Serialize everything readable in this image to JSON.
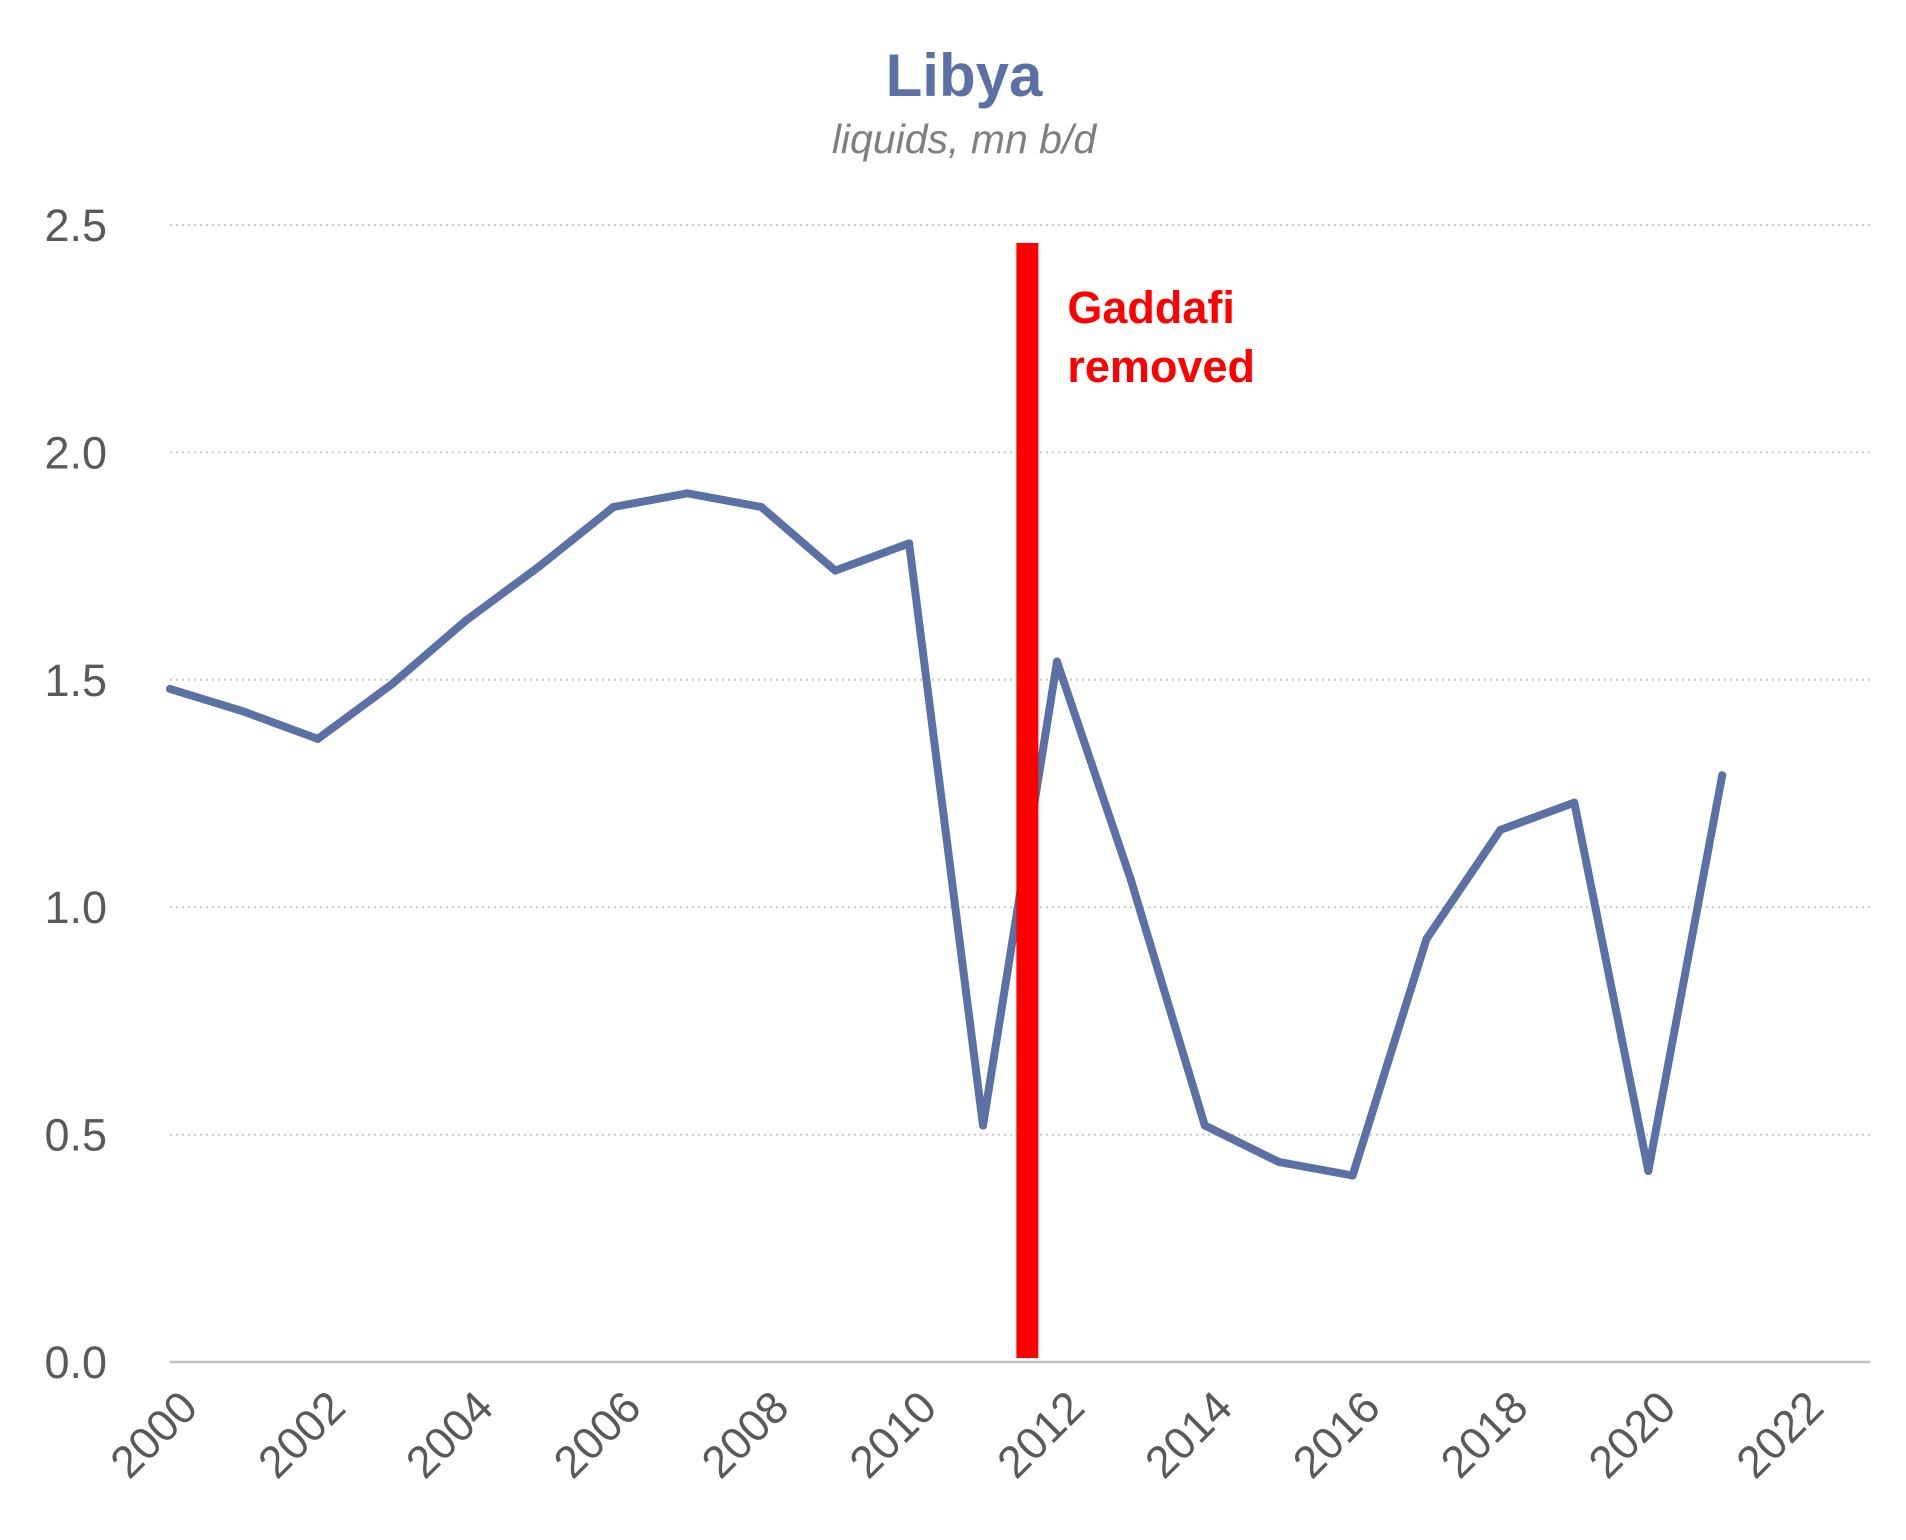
{
  "chart_data": {
    "type": "line",
    "title": "Libya",
    "subtitle": "liquids, mn b/d",
    "xlabel": "",
    "ylabel": "",
    "x": [
      2000,
      2001,
      2002,
      2003,
      2004,
      2005,
      2006,
      2007,
      2008,
      2009,
      2010,
      2011,
      2012,
      2013,
      2014,
      2015,
      2016,
      2017,
      2018,
      2019,
      2020,
      2021
    ],
    "series": [
      {
        "values": [
          1.48,
          1.43,
          1.37,
          1.49,
          1.63,
          1.75,
          1.88,
          1.91,
          1.88,
          1.74,
          1.8,
          0.52,
          1.54,
          1.06,
          0.52,
          0.44,
          0.41,
          0.93,
          1.17,
          1.23,
          0.42,
          1.29
        ],
        "color": "#5b71a6"
      }
    ],
    "xlim": [
      2000,
      2023
    ],
    "ylim": [
      0,
      2.5
    ],
    "x_ticks": [
      "2000",
      "2002",
      "2004",
      "2006",
      "2008",
      "2010",
      "2012",
      "2014",
      "2016",
      "2018",
      "2020",
      "2022"
    ],
    "y_ticks": [
      "0.0",
      "0.5",
      "1.0",
      "1.5",
      "2.0",
      "2.5"
    ],
    "grid": true,
    "legend": "none",
    "annotation": {
      "x": 2011.6,
      "text_lines": [
        "Gaddafi",
        "removed"
      ],
      "color": "#ff0000"
    }
  }
}
